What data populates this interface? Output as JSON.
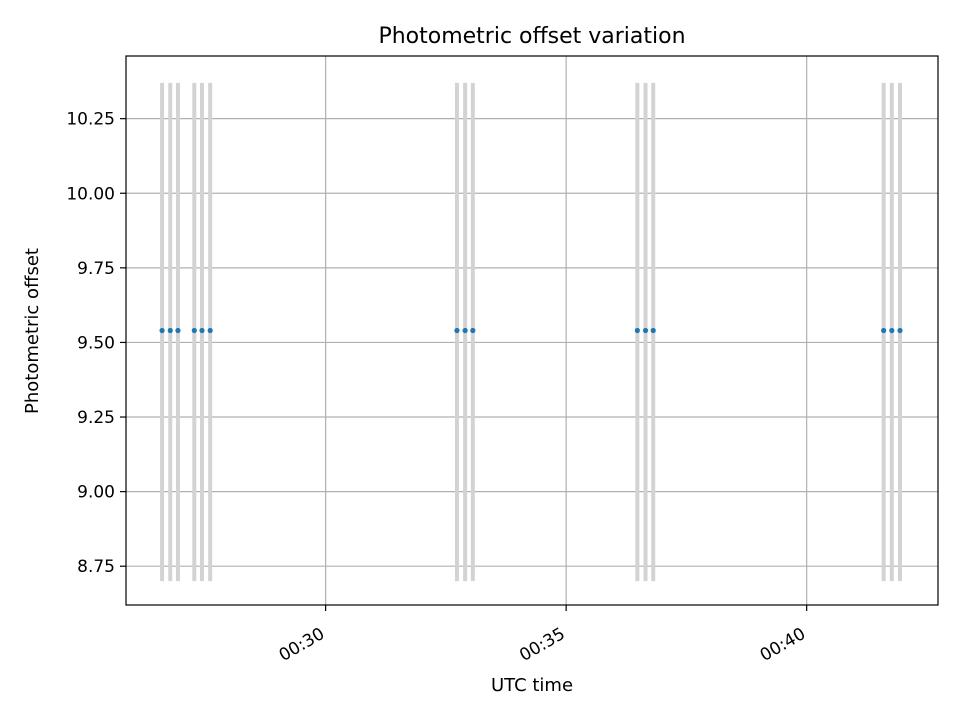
{
  "chart_data": {
    "type": "scatter",
    "title": "Photometric offset variation",
    "xlabel": "UTC time",
    "ylabel": "Photometric offset",
    "x_unit": "minutes",
    "xlim": [
      25.85,
      42.73
    ],
    "ylim": [
      8.62,
      10.46
    ],
    "x_ticks": [
      {
        "value": 30,
        "label": "00:30"
      },
      {
        "value": 35,
        "label": "00:35"
      },
      {
        "value": 40,
        "label": "00:40"
      }
    ],
    "y_ticks": [
      {
        "value": 8.75,
        "label": "8.75"
      },
      {
        "value": 9.0,
        "label": "9.00"
      },
      {
        "value": 9.25,
        "label": "9.25"
      },
      {
        "value": 9.5,
        "label": "9.50"
      },
      {
        "value": 9.75,
        "label": "9.75"
      },
      {
        "value": 10.0,
        "label": "10.00"
      },
      {
        "value": 10.25,
        "label": "10.25"
      }
    ],
    "grid": true,
    "points": [
      {
        "x": 26.6,
        "y": 9.54,
        "err_low": 8.7,
        "err_high": 10.37
      },
      {
        "x": 26.77,
        "y": 9.54,
        "err_low": 8.7,
        "err_high": 10.37
      },
      {
        "x": 26.93,
        "y": 9.54,
        "err_low": 8.7,
        "err_high": 10.37
      },
      {
        "x": 27.27,
        "y": 9.54,
        "err_low": 8.7,
        "err_high": 10.37
      },
      {
        "x": 27.43,
        "y": 9.54,
        "err_low": 8.7,
        "err_high": 10.37
      },
      {
        "x": 27.6,
        "y": 9.54,
        "err_low": 8.7,
        "err_high": 10.37
      },
      {
        "x": 32.73,
        "y": 9.54,
        "err_low": 8.7,
        "err_high": 10.37
      },
      {
        "x": 32.9,
        "y": 9.54,
        "err_low": 8.7,
        "err_high": 10.37
      },
      {
        "x": 33.06,
        "y": 9.54,
        "err_low": 8.7,
        "err_high": 10.37
      },
      {
        "x": 36.48,
        "y": 9.54,
        "err_low": 8.7,
        "err_high": 10.37
      },
      {
        "x": 36.65,
        "y": 9.54,
        "err_low": 8.7,
        "err_high": 10.37
      },
      {
        "x": 36.81,
        "y": 9.54,
        "err_low": 8.7,
        "err_high": 10.37
      },
      {
        "x": 41.6,
        "y": 9.54,
        "err_low": 8.7,
        "err_high": 10.37
      },
      {
        "x": 41.77,
        "y": 9.54,
        "err_low": 8.7,
        "err_high": 10.37
      },
      {
        "x": 41.94,
        "y": 9.54,
        "err_low": 8.7,
        "err_high": 10.37
      }
    ],
    "colors": {
      "point": "#1f77b4",
      "errorbar": "#d3d3d3",
      "grid": "#b0b0b0",
      "axes": "#000000"
    }
  }
}
